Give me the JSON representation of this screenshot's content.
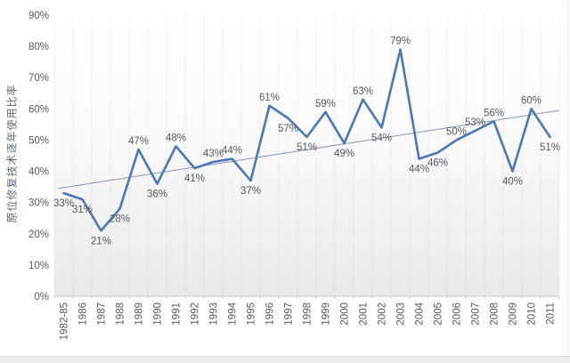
{
  "page": {
    "background": "#ffffff",
    "bottom_strip_color": "#ececec"
  },
  "chart_data": {
    "type": "line",
    "title": "",
    "y_axis_title": "原位修复技术逐年使用比率",
    "xlabel": "",
    "ylabel": "原位修复技术逐年使用比率",
    "categories": [
      "1982-85",
      "1986",
      "1987",
      "1988",
      "1989",
      "1990",
      "1991",
      "1992",
      "1993",
      "1994",
      "1995",
      "1996",
      "1997",
      "1998",
      "1999",
      "2000",
      "2001",
      "2002",
      "2003",
      "2004",
      "2005",
      "2006",
      "2007",
      "2008",
      "2009",
      "2010",
      "2011"
    ],
    "values": [
      33,
      31,
      21,
      28,
      47,
      36,
      48,
      41,
      43,
      44,
      37,
      61,
      57,
      51,
      59,
      49,
      63,
      54,
      79,
      44,
      46,
      50,
      53,
      56,
      40,
      60,
      51
    ],
    "data_labels": [
      "33%",
      "31%",
      "21%",
      "28%",
      "47%",
      "36%",
      "48%",
      "41%",
      "43%",
      "44%",
      "37%",
      "61%",
      "57%",
      "51%",
      "59%",
      "49%",
      "63%",
      "54%",
      "79%",
      "44%",
      "46%",
      "50%",
      "53%",
      "56%",
      "40%",
      "60%",
      "51%"
    ],
    "y_tick_labels": [
      "0%",
      "10%",
      "20%",
      "30%",
      "40%",
      "50%",
      "60%",
      "70%",
      "80%",
      "90%"
    ],
    "ylim": [
      0,
      90
    ],
    "y_tick_step": 10,
    "grid": "vertical-only",
    "legend": "none",
    "x_tick_rotation": "vertical",
    "label_positions": [
      "below",
      "below",
      "below",
      "below",
      "above",
      "below",
      "above",
      "below",
      "above",
      "above",
      "below",
      "above",
      "below",
      "below",
      "above",
      "below",
      "above",
      "below",
      "above",
      "below",
      "below",
      "above",
      "above",
      "above",
      "below",
      "above",
      "below"
    ],
    "trendline": {
      "type": "linear",
      "start_value": 34.5,
      "end_value": 59.5
    },
    "colors": {
      "series_line": "#4978b4",
      "trendline": "#8496ab",
      "data_label": "#54575c",
      "tick_label": "#595959",
      "axis_line": "#c8c8c8",
      "gridline": "rgba(110,110,110,0.09)"
    }
  }
}
